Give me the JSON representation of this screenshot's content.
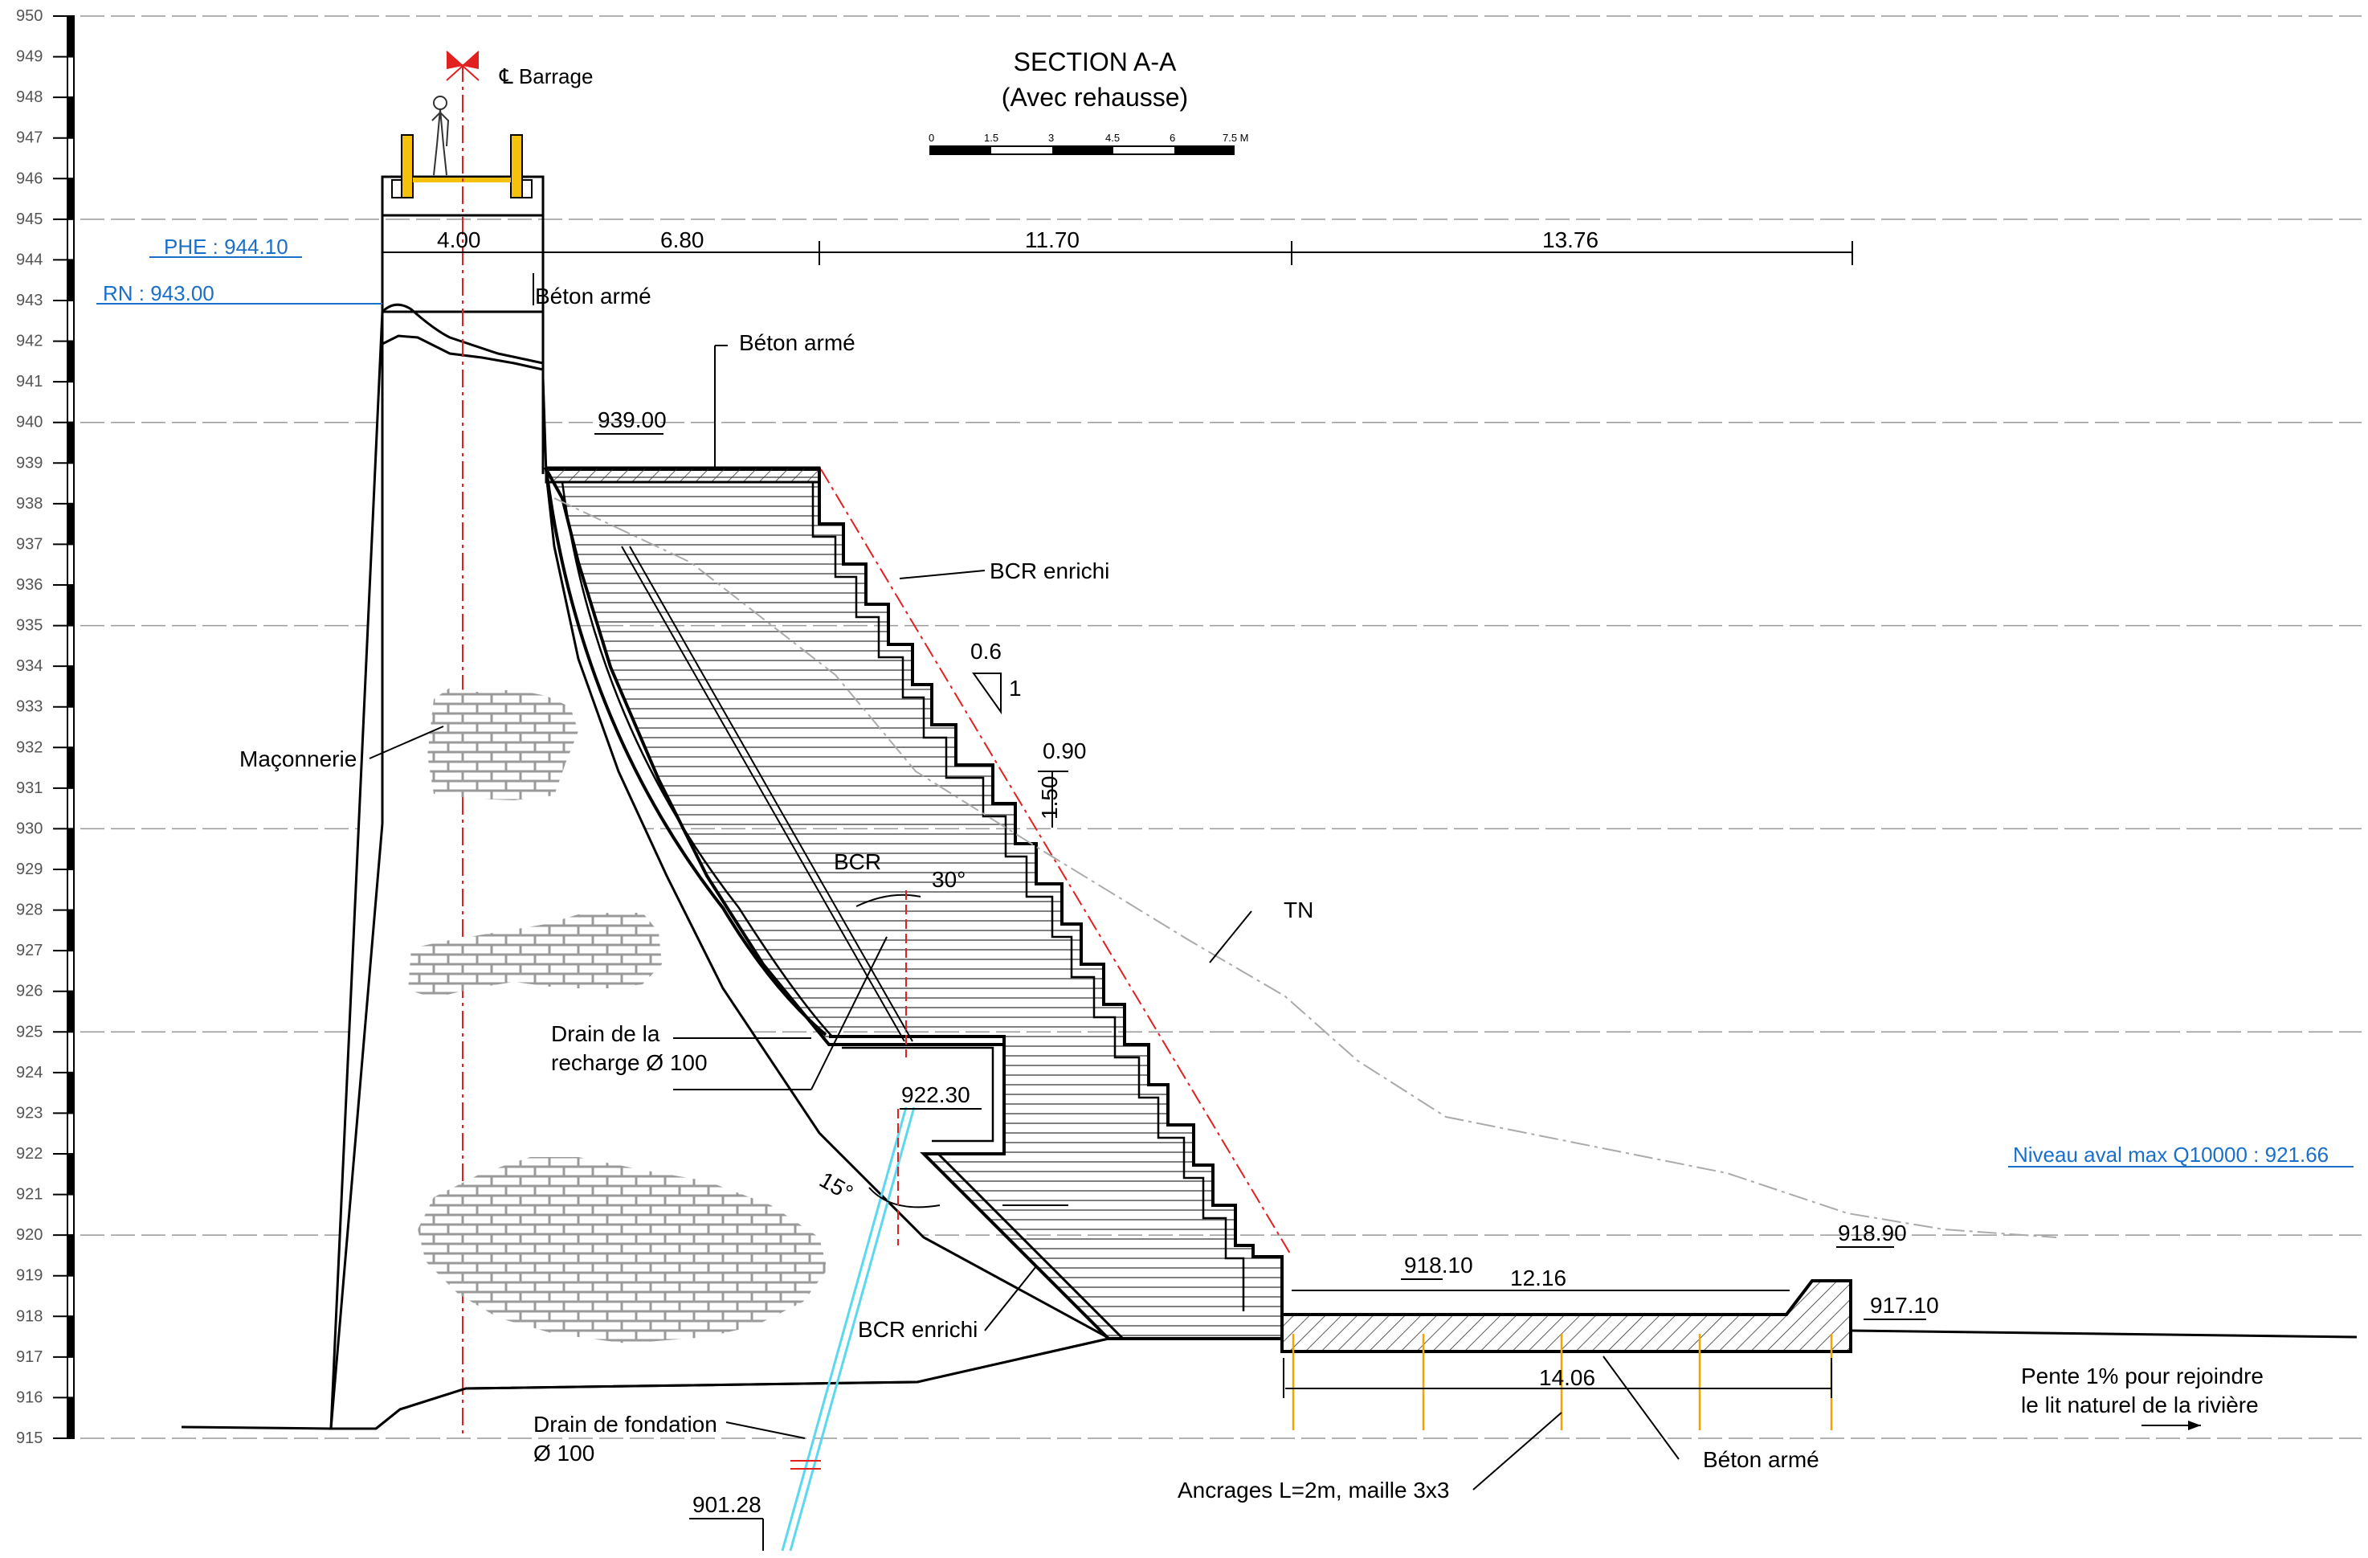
{
  "title": {
    "line1": "SECTION A-A",
    "line2": "(Avec rehausse)"
  },
  "scale_bar": {
    "ticks": [
      "0",
      "1.5",
      "3",
      "4.5",
      "6",
      "7.5 M"
    ]
  },
  "elevation_axis": [
    "950",
    "949",
    "948",
    "947",
    "946",
    "945",
    "944",
    "943",
    "942",
    "941",
    "940",
    "939",
    "938",
    "937",
    "936",
    "935",
    "934",
    "933",
    "932",
    "931",
    "930",
    "929",
    "928",
    "927",
    "926",
    "925",
    "924",
    "923",
    "922",
    "921",
    "920",
    "919",
    "918",
    "917",
    "916",
    "915"
  ],
  "water_levels": {
    "phe": "PHE : 944.10",
    "rn": "RN : 943.00",
    "aval": "Niveau aval max Q10000 : 921.66"
  },
  "labels": {
    "axis_dam": "℄ Barrage",
    "beton_arme_top": "Béton armé",
    "beton_arme_crest": "Béton armé",
    "bcr_enrichi_top": "BCR enrichi",
    "bcr_enrichi_bottom": "BCR enrichi",
    "maconnerie": "Maçonnerie",
    "bcr": "BCR",
    "tn": "TN",
    "drain_recharge_1": "Drain de la",
    "drain_recharge_2": "recharge Ø 100",
    "drain_fondation_1": "Drain de fondation",
    "drain_fondation_2": "Ø 100",
    "ancrages": "Ancrages L=2m, maille 3x3",
    "beton_arme_apron": "Béton armé",
    "pente_1": "Pente 1% pour rejoindre",
    "pente_2": "le lit naturel de la rivière"
  },
  "dimensions": {
    "d_400": "4.00",
    "d_680": "6.80",
    "d_1170": "11.70",
    "d_1376": "13.76",
    "d_939": "939.00",
    "d_06": "0.6",
    "d_1": "1",
    "d_090": "0.90",
    "d_150": "1.50",
    "d_30": "30°",
    "d_15": "15°",
    "d_92230": "922.30",
    "d_91810": "918.10",
    "d_1216": "12.16",
    "d_91890": "918.90",
    "d_91710": "917.10",
    "d_1406": "14.06",
    "d_90128": "901.28"
  },
  "colors": {
    "water_blue": "#1a6fc9",
    "axis_red": "#e32020",
    "anchor_orange": "#f0a500",
    "drain_cyan": "#5ad8f0",
    "walkway_yellow": "#f4c20d"
  }
}
